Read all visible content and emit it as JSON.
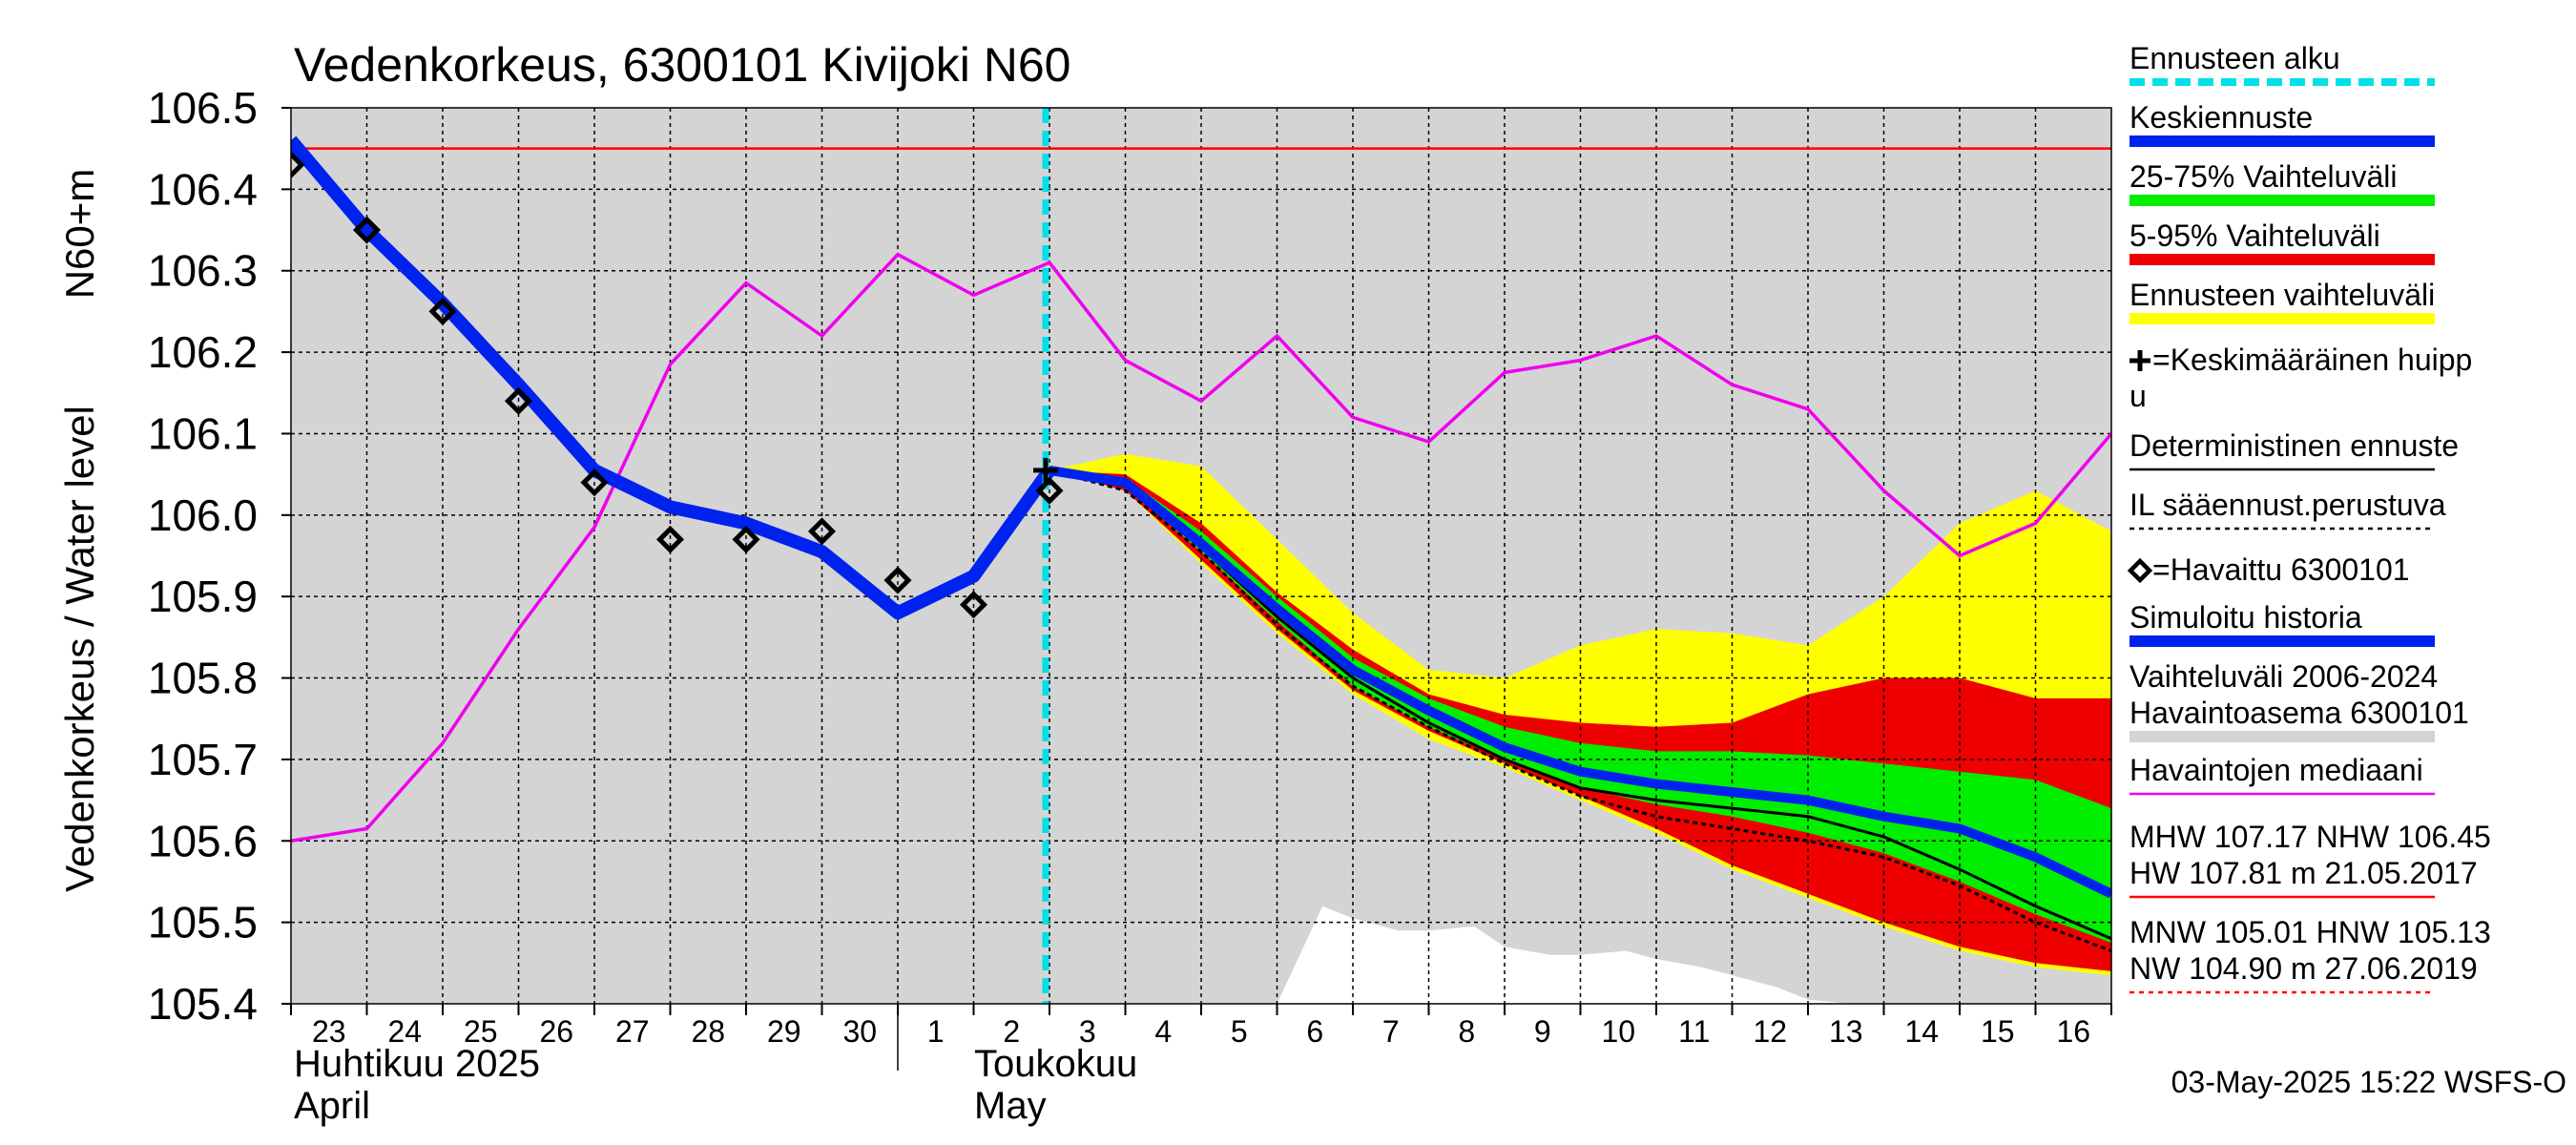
{
  "chart_data": {
    "type": "line",
    "title": "Vedenkorkeus, 6300101 Kivijoki N60",
    "ylabel_inner": "N60+m",
    "ylabel_outer": "Vedenkorkeus / Water level",
    "ylim": [
      105.4,
      106.5
    ],
    "yticks": [
      "105.4",
      "105.5",
      "105.6",
      "105.7",
      "105.8",
      "105.9",
      "106.0",
      "106.1",
      "106.2",
      "106.3",
      "106.4",
      "106.5"
    ],
    "x_start_day": 23,
    "x_end_day": 47,
    "xtick_labels": [
      "23",
      "24",
      "25",
      "26",
      "27",
      "28",
      "29",
      "30",
      "1",
      "2",
      "3",
      "4",
      "5",
      "6",
      "7",
      "8",
      "9",
      "10",
      "11",
      "12",
      "13",
      "14",
      "15",
      "16"
    ],
    "month_labels": [
      {
        "fi": "Huhtikuu  2025",
        "en": "April",
        "day": 23
      },
      {
        "fi": "Toukokuu",
        "en": "May",
        "day": 32
      }
    ],
    "forecast_start_day": 33,
    "reference_line": {
      "name": "NHW",
      "value": 106.45,
      "color": "#ff0000"
    },
    "median": {
      "name": "Havaintojen mediaani",
      "color": "#ee00ee",
      "x": [
        23,
        24,
        25,
        26,
        27,
        28,
        29,
        30,
        31,
        32,
        33,
        34,
        35,
        36,
        37,
        38,
        39,
        40,
        41,
        42,
        43,
        44,
        45,
        46,
        47
      ],
      "y": [
        105.6,
        105.615,
        105.72,
        105.86,
        105.985,
        106.185,
        106.285,
        106.22,
        106.32,
        106.27,
        106.31,
        106.19,
        106.14,
        106.22,
        106.12,
        106.09,
        106.175,
        106.19,
        106.22,
        106.16,
        106.13,
        106.03,
        105.95,
        105.99,
        106.1
      ]
    },
    "simulated": {
      "name": "Simuloitu historia",
      "color": "#0022ee",
      "x": [
        23,
        24,
        25,
        26,
        27,
        28,
        29,
        30,
        31,
        32,
        33
      ],
      "y": [
        106.46,
        106.35,
        106.26,
        106.16,
        106.055,
        106.01,
        105.99,
        105.955,
        105.88,
        105.925,
        106.055
      ]
    },
    "observed": {
      "name": "=Havaittu 6300101",
      "x": [
        23,
        24,
        25,
        26,
        27,
        28,
        29,
        30,
        31,
        32,
        33
      ],
      "y": [
        106.43,
        106.35,
        106.25,
        106.14,
        106.04,
        105.97,
        105.97,
        105.98,
        105.92,
        105.89,
        106.03
      ]
    },
    "forecast_x": [
      33,
      34,
      35,
      36,
      37,
      38,
      39,
      40,
      41,
      42,
      43,
      44,
      45,
      46,
      47
    ],
    "forecast_mean": {
      "name": "Keskiennuste",
      "color": "#0022ee",
      "y": [
        106.055,
        106.04,
        105.965,
        105.885,
        105.81,
        105.76,
        105.715,
        105.685,
        105.67,
        105.66,
        105.65,
        105.63,
        105.615,
        105.58,
        105.535
      ]
    },
    "band_25_75": {
      "name": "25-75% Vaihteluväli",
      "color": "#00ee00",
      "upper": [
        106.055,
        106.045,
        105.98,
        105.9,
        105.825,
        105.775,
        105.74,
        105.72,
        105.71,
        105.71,
        105.705,
        105.695,
        105.685,
        105.675,
        105.64
      ],
      "lower": [
        106.055,
        106.035,
        105.955,
        105.87,
        105.79,
        105.74,
        105.7,
        105.665,
        105.645,
        105.63,
        105.61,
        105.585,
        105.55,
        105.51,
        105.475
      ]
    },
    "band_5_95": {
      "name": "5-95% Vaihteluväli",
      "color": "#ee0000",
      "upper": [
        106.055,
        106.05,
        105.99,
        105.905,
        105.835,
        105.78,
        105.755,
        105.745,
        105.74,
        105.745,
        105.78,
        105.8,
        105.8,
        105.775,
        105.775
      ],
      "lower": [
        106.055,
        106.03,
        105.945,
        105.86,
        105.785,
        105.735,
        105.695,
        105.655,
        105.615,
        105.57,
        105.535,
        105.5,
        105.47,
        105.45,
        105.44
      ]
    },
    "band_forecast": {
      "name": "Ennusteen vaihteluväli",
      "color": "#ffff00",
      "upper": [
        106.055,
        106.075,
        106.06,
        105.97,
        105.88,
        105.81,
        105.8,
        105.84,
        105.86,
        105.855,
        105.84,
        105.9,
        105.99,
        106.03,
        105.98
      ],
      "lower": [
        106.055,
        106.03,
        105.94,
        105.855,
        105.78,
        105.725,
        105.69,
        105.65,
        105.61,
        105.565,
        105.53,
        105.495,
        105.465,
        105.445,
        105.435
      ]
    },
    "deterministic": {
      "name": "Deterministinen ennuste",
      "color": "#000000",
      "y": [
        106.055,
        106.035,
        105.96,
        105.875,
        105.8,
        105.745,
        105.7,
        105.665,
        105.65,
        105.64,
        105.63,
        105.605,
        105.565,
        105.52,
        105.48
      ]
    },
    "il_forecast": {
      "name": "IL sääennust.perustuva",
      "color": "#000000",
      "y": [
        106.055,
        106.03,
        105.955,
        105.865,
        105.79,
        105.74,
        105.695,
        105.655,
        105.63,
        105.615,
        105.6,
        105.58,
        105.545,
        105.5,
        105.465
      ]
    },
    "mean_peak": {
      "name": "=Keskimääräinen huippu",
      "x": 33,
      "y": 106.055
    },
    "history_range": {
      "name": "Vaihteluväli 2006-2024",
      "name2": " Havaintoasema 6300101",
      "color": "#d4d4d4",
      "lower_x": [
        36,
        36.6,
        37,
        37.6,
        38,
        38.6,
        39,
        39.6,
        40,
        40.6,
        41,
        41.6,
        42,
        42.6,
        43,
        43.6
      ],
      "lower_y": [
        105.4,
        105.52,
        105.505,
        105.49,
        105.49,
        105.495,
        105.47,
        105.46,
        105.46,
        105.465,
        105.455,
        105.445,
        105.435,
        105.42,
        105.405,
        105.4
      ]
    },
    "legend": [
      {
        "key": "forecast_start",
        "label": "Ennusteen alku",
        "color": "#00e0e8",
        "style": "dashed-thick"
      },
      {
        "key": "mean",
        "label": "Keskiennuste",
        "color": "#0022ee",
        "style": "thick"
      },
      {
        "key": "b2575",
        "label": "25-75% Vaihteluväli",
        "color": "#00ee00",
        "style": "thick"
      },
      {
        "key": "b595",
        "label": "5-95% Vaihteluväli",
        "color": "#ee0000",
        "style": "thick"
      },
      {
        "key": "bfc",
        "label": "Ennusteen vaihteluväli",
        "color": "#ffff00",
        "style": "thick"
      },
      {
        "key": "peak",
        "label": "=Keskimääräinen huipp",
        "label2": "u",
        "color": "#000000",
        "style": "plus"
      },
      {
        "key": "det",
        "label": "Deterministinen ennuste",
        "color": "#000000",
        "style": "thin"
      },
      {
        "key": "il",
        "label": "IL sääennust.perustuva",
        "color": "#000000",
        "style": "dotted"
      },
      {
        "key": "obs",
        "label": "=Havaittu 6300101",
        "color": "#000000",
        "style": "diamond"
      },
      {
        "key": "sim",
        "label": "Simuloitu historia",
        "color": "#0022ee",
        "style": "thick"
      },
      {
        "key": "hist",
        "label": "Vaihteluväli 2006-2024",
        "label2": " Havaintoasema 6300101",
        "color": "#d4d4d4",
        "style": "thick"
      },
      {
        "key": "med",
        "label": "Havaintojen mediaani",
        "color": "#ee00ee",
        "style": "thin"
      },
      {
        "key": "mhw",
        "label": "MHW 107.17 NHW 106.45",
        "label2": "HW 107.81 m 21.05.2017",
        "color": "#ff0000",
        "style": "thin"
      },
      {
        "key": "mnw",
        "label": "MNW 105.01 HNW 105.13",
        "label2": "NW 104.90 m 27.06.2019",
        "color": "#ff0000",
        "style": "dotted-red"
      }
    ],
    "timestamp": "03-May-2025 15:22 WSFS-O"
  }
}
